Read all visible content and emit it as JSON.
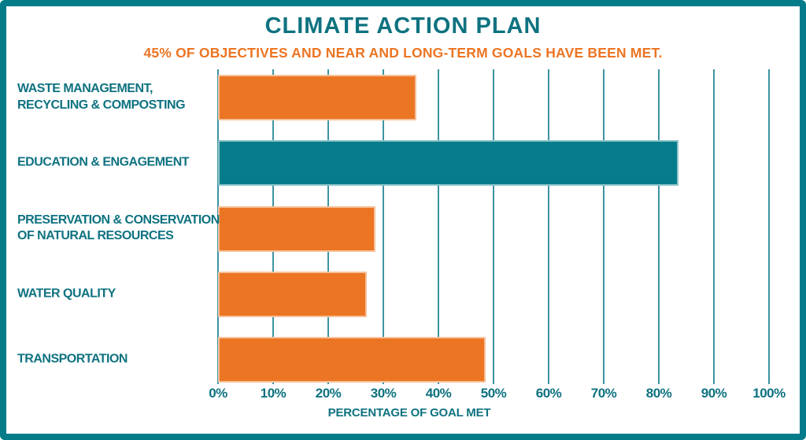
{
  "page": {
    "title": "CLIMATE ACTION PLAN",
    "subtitle": "45% OF OBJECTIVES AND NEAR AND LONG-TERM GOALS HAVE BEEN MET."
  },
  "colors": {
    "teal-text": "#0E7280",
    "teal-bar": "#047C8A",
    "orange": "#EC7523",
    "grid": "#3D94A3",
    "bg": "#FFFFFF"
  },
  "chart_data": {
    "type": "bar",
    "orientation": "horizontal",
    "title": "CLIMATE ACTION PLAN",
    "subtitle": "45% OF OBJECTIVES AND NEAR AND LONG-TERM GOALS HAVE BEEN MET.",
    "categories": [
      "WASTE MANAGEMENT, RECYCLING & COMPOSTING",
      "EDUCATION & ENGAGEMENT",
      "PRESERVATION & CONSERVATION OF NATURAL RESOURCES",
      "WATER QUALITY",
      "TRANSPORTATION"
    ],
    "values": [
      36,
      83.5,
      28.5,
      27,
      48.5
    ],
    "bar_colors": [
      "#EC7523",
      "#047C8A",
      "#EC7523",
      "#EC7523",
      "#EC7523"
    ],
    "xlabel": "PERCENTAGE OF GOAL MET",
    "x_ticks": [
      "0%",
      "10%",
      "20%",
      "30%",
      "40%",
      "50%",
      "60%",
      "70%",
      "80%",
      "90%",
      "100%"
    ],
    "xlim": [
      0,
      100
    ],
    "grid": true,
    "legend": false
  }
}
